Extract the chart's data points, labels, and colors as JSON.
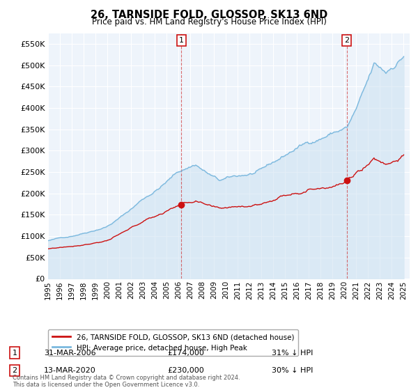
{
  "title": "26, TARNSIDE FOLD, GLOSSOP, SK13 6ND",
  "subtitle": "Price paid vs. HM Land Registry's House Price Index (HPI)",
  "ylim": [
    0,
    575000
  ],
  "yticks": [
    0,
    50000,
    100000,
    150000,
    200000,
    250000,
    300000,
    350000,
    400000,
    450000,
    500000,
    550000
  ],
  "xlim_start": 1995.0,
  "xlim_end": 2025.5,
  "background_color": "#ffffff",
  "plot_bg_color": "#eef4fb",
  "grid_color": "#ffffff",
  "hpi_color": "#7ab8de",
  "hpi_fill_color": "#c8dff0",
  "price_color": "#cc1111",
  "marker1_date": 2006.24,
  "marker1_price": 174000,
  "marker2_date": 2020.2,
  "marker2_price": 230000,
  "legend_house": "26, TARNSIDE FOLD, GLOSSOP, SK13 6ND (detached house)",
  "legend_hpi": "HPI: Average price, detached house, High Peak",
  "note1_label": "1",
  "note1_date": "31-MAR-2006",
  "note1_price": "£174,000",
  "note1_pct": "31% ↓ HPI",
  "note2_label": "2",
  "note2_date": "13-MAR-2020",
  "note2_price": "£230,000",
  "note2_pct": "30% ↓ HPI",
  "footer": "Contains HM Land Registry data © Crown copyright and database right 2024.\nThis data is licensed under the Open Government Licence v3.0."
}
